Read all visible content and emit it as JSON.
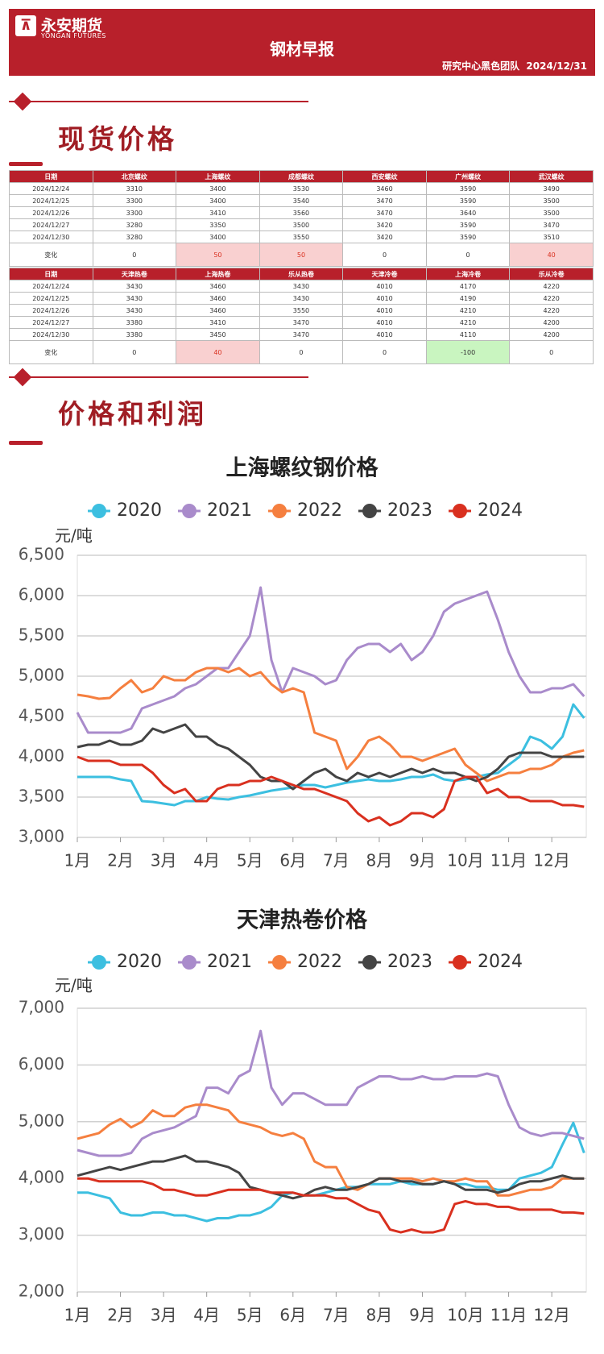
{
  "header": {
    "logo": "永安期货",
    "logo_en": "YONGAN FUTURES",
    "title": "钢材早报",
    "byline": "研究中心黑色团队  2024/12/31"
  },
  "sections": [
    "现货价格",
    "价格和利润"
  ],
  "tables": [
    {
      "header": [
        "日期",
        "北京螺纹",
        "上海螺纹",
        "成都螺纹",
        "西安螺纹",
        "广州螺纹",
        "武汉螺纹"
      ],
      "rows": [
        [
          "2024/12/24",
          3310,
          3400,
          3530,
          3460,
          3590,
          3490
        ],
        [
          "2024/12/25",
          3300,
          3400,
          3540,
          3470,
          3590,
          3500
        ],
        [
          "2024/12/26",
          3300,
          3410,
          3560,
          3470,
          3640,
          3500
        ],
        [
          "2024/12/27",
          3280,
          3350,
          3500,
          3420,
          3590,
          3470
        ],
        [
          "2024/12/30",
          3280,
          3400,
          3550,
          3420,
          3590,
          3510
        ],
        [
          "变化",
          0,
          50,
          50,
          0,
          0,
          40
        ]
      ]
    },
    {
      "header": [
        "日期",
        "天津热卷",
        "上海热卷",
        "乐从热卷",
        "天津冷卷",
        "上海冷卷",
        "乐从冷卷"
      ],
      "rows": [
        [
          "2024/12/24",
          3430,
          3460,
          3430,
          4010,
          4170,
          4220
        ],
        [
          "2024/12/25",
          3430,
          3460,
          3430,
          4010,
          4190,
          4220
        ],
        [
          "2024/12/26",
          3430,
          3460,
          3550,
          4010,
          4210,
          4220
        ],
        [
          "2024/12/27",
          3380,
          3410,
          3470,
          4010,
          4210,
          4200
        ],
        [
          "2024/12/30",
          3380,
          3450,
          3470,
          4010,
          4110,
          4200
        ],
        [
          "变化",
          0,
          40,
          0,
          0,
          -100,
          0
        ]
      ]
    }
  ],
  "chart_data": [
    {
      "type": "line",
      "title": "上海螺纹钢价格",
      "ylabel": "元/吨",
      "grid": true,
      "x": [
        0,
        0.25,
        0.5,
        0.75,
        1,
        1.25,
        1.5,
        1.75,
        2,
        2.25,
        2.5,
        2.75,
        3,
        3.25,
        3.5,
        3.75,
        4,
        4.25,
        4.5,
        4.75,
        5,
        5.25,
        5.5,
        5.75,
        6,
        6.25,
        6.5,
        6.75,
        7,
        7.25,
        7.5,
        7.75,
        8,
        8.25,
        8.5,
        8.75,
        9,
        9.25,
        9.5,
        9.75,
        10,
        10.25,
        10.5,
        10.75,
        11,
        11.25,
        11.5,
        11.75
      ],
      "xlim": [
        0,
        11.8
      ],
      "xticks": [
        {
          "value": 0,
          "label": "1月"
        },
        {
          "value": 1,
          "label": "2月"
        },
        {
          "value": 2,
          "label": "3月"
        },
        {
          "value": 3,
          "label": "4月"
        },
        {
          "value": 4,
          "label": "5月"
        },
        {
          "value": 5,
          "label": "6月"
        },
        {
          "value": 6,
          "label": "7月"
        },
        {
          "value": 7,
          "label": "8月"
        },
        {
          "value": 8,
          "label": "9月"
        },
        {
          "value": 9,
          "label": "10月"
        },
        {
          "value": 10,
          "label": "11月"
        },
        {
          "value": 11,
          "label": "12月"
        }
      ],
      "ylim": [
        3000,
        6500
      ],
      "yticks": [
        {
          "value": 3000,
          "label": "3,000"
        },
        {
          "value": 3500,
          "label": "3,500"
        },
        {
          "value": 4000,
          "label": "4,000"
        },
        {
          "value": 4500,
          "label": "4,500"
        },
        {
          "value": 5000,
          "label": "5,000"
        },
        {
          "value": 5500,
          "label": "5,500"
        },
        {
          "value": 6000,
          "label": "6,000"
        },
        {
          "value": 6500,
          "label": "6,500"
        }
      ],
      "series": [
        {
          "name": "2020",
          "color": "#3cbfe0",
          "values": [
            3750,
            3750,
            3750,
            3750,
            3720,
            3700,
            3450,
            3440,
            3420,
            3400,
            3450,
            3450,
            3500,
            3480,
            3470,
            3500,
            3520,
            3550,
            3580,
            3600,
            3620,
            3650,
            3650,
            3620,
            3650,
            3680,
            3700,
            3720,
            3700,
            3700,
            3720,
            3750,
            3750,
            3780,
            3720,
            3700,
            3720,
            3750,
            3780,
            3800,
            3900,
            4000,
            4250,
            4200,
            4100,
            4250,
            4650,
            4480
          ]
        },
        {
          "name": "2021",
          "color": "#a98bcb",
          "values": [
            4550,
            4300,
            4300,
            4300,
            4300,
            4350,
            4600,
            4650,
            4700,
            4750,
            4850,
            4900,
            5000,
            5100,
            5100,
            5300,
            5500,
            6100,
            5200,
            4800,
            5100,
            5050,
            5000,
            4900,
            4950,
            5200,
            5350,
            5400,
            5400,
            5300,
            5400,
            5200,
            5300,
            5500,
            5800,
            5900,
            5950,
            6000,
            6050,
            5700,
            5300,
            5000,
            4800,
            4800,
            4850,
            4850,
            4900,
            4750
          ]
        },
        {
          "name": "2022",
          "color": "#f57f3f",
          "values": [
            4770,
            4750,
            4720,
            4730,
            4850,
            4950,
            4800,
            4850,
            5000,
            4950,
            4950,
            5050,
            5100,
            5100,
            5050,
            5100,
            5000,
            5050,
            4900,
            4800,
            4850,
            4800,
            4300,
            4250,
            4200,
            3850,
            4000,
            4200,
            4250,
            4150,
            4000,
            4000,
            3950,
            4000,
            4050,
            4100,
            3900,
            3800,
            3700,
            3750,
            3800,
            3800,
            3850,
            3850,
            3900,
            4000,
            4050,
            4080
          ]
        },
        {
          "name": "2023",
          "color": "#444444",
          "values": [
            4120,
            4150,
            4150,
            4200,
            4150,
            4150,
            4200,
            4350,
            4300,
            4350,
            4400,
            4250,
            4250,
            4150,
            4100,
            4000,
            3900,
            3750,
            3700,
            3700,
            3600,
            3700,
            3800,
            3850,
            3750,
            3700,
            3800,
            3750,
            3800,
            3750,
            3800,
            3850,
            3800,
            3850,
            3800,
            3800,
            3750,
            3700,
            3750,
            3850,
            4000,
            4050,
            4050,
            4050,
            4000,
            4000,
            4000,
            4000
          ]
        },
        {
          "name": "2024",
          "color": "#d9301f",
          "values": [
            4000,
            3950,
            3950,
            3950,
            3900,
            3900,
            3900,
            3800,
            3650,
            3550,
            3600,
            3450,
            3450,
            3600,
            3650,
            3650,
            3700,
            3700,
            3750,
            3700,
            3650,
            3600,
            3600,
            3550,
            3500,
            3450,
            3300,
            3200,
            3250,
            3150,
            3200,
            3300,
            3300,
            3250,
            3350,
            3700,
            3750,
            3750,
            3550,
            3600,
            3500,
            3500,
            3450,
            3450,
            3450,
            3400,
            3400,
            3380
          ]
        }
      ]
    },
    {
      "type": "line",
      "title": "天津热卷价格",
      "ylabel": "元/吨",
      "grid": true,
      "x": [
        0,
        0.25,
        0.5,
        0.75,
        1,
        1.25,
        1.5,
        1.75,
        2,
        2.25,
        2.5,
        2.75,
        3,
        3.25,
        3.5,
        3.75,
        4,
        4.25,
        4.5,
        4.75,
        5,
        5.25,
        5.5,
        5.75,
        6,
        6.25,
        6.5,
        6.75,
        7,
        7.25,
        7.5,
        7.75,
        8,
        8.25,
        8.5,
        8.75,
        9,
        9.25,
        9.5,
        9.75,
        10,
        10.25,
        10.5,
        10.75,
        11,
        11.25,
        11.5,
        11.75
      ],
      "xlim": [
        0,
        11.8
      ],
      "xticks": [
        {
          "value": 0,
          "label": "1月"
        },
        {
          "value": 1,
          "label": "2月"
        },
        {
          "value": 2,
          "label": "3月"
        },
        {
          "value": 3,
          "label": "4月"
        },
        {
          "value": 4,
          "label": "5月"
        },
        {
          "value": 5,
          "label": "6月"
        },
        {
          "value": 6,
          "label": "7月"
        },
        {
          "value": 7,
          "label": "8月"
        },
        {
          "value": 8,
          "label": "9月"
        },
        {
          "value": 9,
          "label": "10月"
        },
        {
          "value": 10,
          "label": "11月"
        },
        {
          "value": 11,
          "label": "12月"
        }
      ],
      "ylim": [
        2000,
        7000
      ],
      "yticks": [
        {
          "value": 2000,
          "label": "2,000"
        },
        {
          "value": 3000,
          "label": "3,000"
        },
        {
          "value": 4000,
          "label": "4,000"
        },
        {
          "value": 5000,
          "label": "5,000"
        },
        {
          "value": 6000,
          "label": "6,000"
        },
        {
          "value": 7000,
          "label": "7,000"
        }
      ],
      "series": [
        {
          "name": "2020",
          "color": "#3cbfe0",
          "values": [
            3750,
            3750,
            3700,
            3650,
            3400,
            3350,
            3350,
            3400,
            3400,
            3350,
            3350,
            3300,
            3250,
            3300,
            3300,
            3350,
            3350,
            3400,
            3500,
            3700,
            3750,
            3700,
            3700,
            3750,
            3800,
            3850,
            3850,
            3900,
            3900,
            3900,
            3950,
            3900,
            3900,
            3900,
            3950,
            3900,
            3900,
            3850,
            3850,
            3800,
            3800,
            4000,
            4050,
            4100,
            4200,
            4600,
            4980,
            4450
          ]
        },
        {
          "name": "2021",
          "color": "#a98bcb",
          "values": [
            4500,
            4450,
            4400,
            4400,
            4400,
            4450,
            4700,
            4800,
            4850,
            4900,
            5000,
            5100,
            5600,
            5600,
            5500,
            5800,
            5900,
            6600,
            5600,
            5300,
            5500,
            5500,
            5400,
            5300,
            5300,
            5300,
            5600,
            5700,
            5800,
            5800,
            5750,
            5750,
            5800,
            5750,
            5750,
            5800,
            5800,
            5800,
            5850,
            5800,
            5300,
            4900,
            4800,
            4750,
            4800,
            4800,
            4750,
            4700
          ]
        },
        {
          "name": "2022",
          "color": "#f57f3f",
          "values": [
            4700,
            4750,
            4800,
            4950,
            5050,
            4900,
            5000,
            5200,
            5100,
            5100,
            5250,
            5300,
            5300,
            5250,
            5200,
            5000,
            4950,
            4900,
            4800,
            4750,
            4800,
            4700,
            4300,
            4200,
            4200,
            3850,
            3800,
            3900,
            4000,
            4000,
            4000,
            4000,
            3950,
            4000,
            3950,
            3950,
            4000,
            3950,
            3950,
            3700,
            3700,
            3750,
            3800,
            3800,
            3850,
            4000,
            4000,
            4000
          ]
        },
        {
          "name": "2023",
          "color": "#444444",
          "values": [
            4050,
            4100,
            4150,
            4200,
            4150,
            4200,
            4250,
            4300,
            4300,
            4350,
            4400,
            4300,
            4300,
            4250,
            4200,
            4100,
            3850,
            3800,
            3750,
            3700,
            3650,
            3700,
            3800,
            3850,
            3800,
            3800,
            3850,
            3900,
            4000,
            4000,
            3950,
            3950,
            3900,
            3900,
            3950,
            3900,
            3800,
            3800,
            3800,
            3750,
            3800,
            3900,
            3950,
            3950,
            4000,
            4050,
            4000,
            4000
          ]
        },
        {
          "name": "2024",
          "color": "#d9301f",
          "values": [
            4000,
            4000,
            3950,
            3950,
            3950,
            3950,
            3950,
            3900,
            3800,
            3800,
            3750,
            3700,
            3700,
            3750,
            3800,
            3800,
            3800,
            3800,
            3750,
            3750,
            3750,
            3700,
            3700,
            3700,
            3650,
            3650,
            3550,
            3450,
            3400,
            3100,
            3050,
            3100,
            3050,
            3050,
            3100,
            3550,
            3600,
            3550,
            3550,
            3500,
            3500,
            3450,
            3450,
            3450,
            3450,
            3400,
            3400,
            3380
          ]
        }
      ]
    }
  ]
}
